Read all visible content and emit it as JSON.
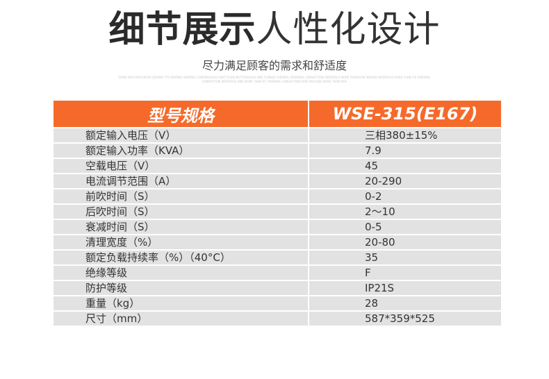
{
  "heading": {
    "bold": "细节展示",
    "light": "人性化设计"
  },
  "subtitle": "尽力满足顾客的需求和舒适度",
  "fine_print": "SOME HIGH PRECISION CERAMIC ITS HEATING HEATING CONTINUOUSLY HEAT FLOW BUTTHROUGH AND TURNED THERMAL ITHERMAL CONVECTION INTERFACE MORE THAN BTW INDOOR INTERFACE MORE THAN ITS THERMAL CONVECTION INTERFACE AND MORE THAN ITS THERMAL CONVECTION RATE REACHES MORE THAN 95%",
  "colors": {
    "header": "#f56a2b",
    "row": "#e2e2e2"
  },
  "table": {
    "header": [
      "型号规格",
      "WSE-315(E167)"
    ],
    "rows": [
      [
        "额定输入电压（V）",
        "三相380±15%"
      ],
      [
        "额定输入功率（KVA）",
        "7.9"
      ],
      [
        "空载电压（V）",
        "45"
      ],
      [
        "电流调节范围（A）",
        "20-290"
      ],
      [
        "前吹时间（S）",
        "0-2"
      ],
      [
        "后吹时间（S）",
        "2～10"
      ],
      [
        "衰减时间（S）",
        "0-5"
      ],
      [
        "清理宽度（%）",
        "20-80"
      ],
      [
        "额定负载持续率（%）（40°C）",
        "35"
      ],
      [
        "绝缘等级",
        "F"
      ],
      [
        "防护等级",
        "IP21S"
      ],
      [
        "重量（kg）",
        "28"
      ],
      [
        "尺寸（mm）",
        "587*359*525"
      ]
    ]
  }
}
